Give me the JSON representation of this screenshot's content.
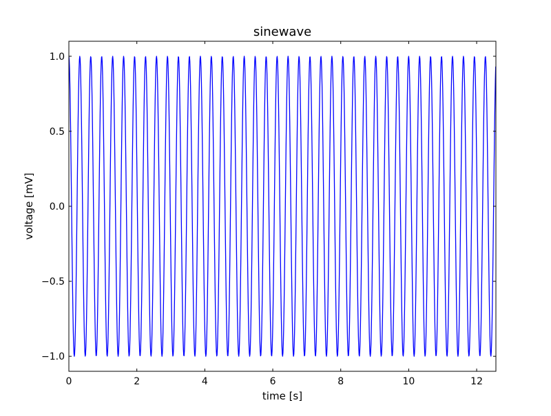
{
  "chart_data": {
    "type": "line",
    "title": "sinewave",
    "xlabel": "time [s]",
    "ylabel": "voltage [mV]",
    "xlim": [
      0,
      12.566
    ],
    "ylim": [
      -1.1,
      1.1
    ],
    "xticks": [
      0,
      2,
      4,
      6,
      8,
      10,
      12
    ],
    "xtick_labels": [
      "0",
      "2",
      "4",
      "6",
      "8",
      "10",
      "12"
    ],
    "yticks": [
      -1.0,
      -0.5,
      0.0,
      0.5,
      1.0
    ],
    "ytick_labels": [
      "−1.0",
      "−0.5",
      "0.0",
      "0.5",
      "1.0"
    ],
    "grid": false,
    "series": [
      {
        "function": "sin",
        "frequency_hz": 3.1,
        "amplitude": 1.0,
        "phase": 1.6,
        "x_start": 0,
        "x_end": 12.566,
        "sample_step": 0.01,
        "color": "#0000ff"
      }
    ]
  }
}
